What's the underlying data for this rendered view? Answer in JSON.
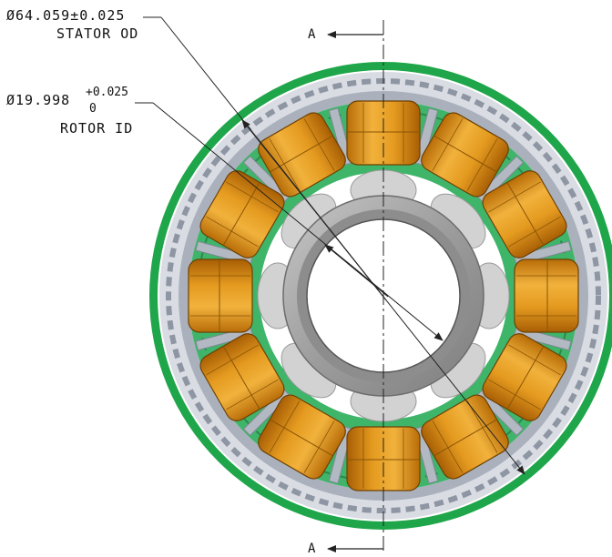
{
  "dimensions": {
    "stator_od": {
      "symbol": "Ø",
      "value": "64.059±0.025",
      "label": "STATOR OD"
    },
    "rotor_id": {
      "symbol": "Ø",
      "value": "19.998",
      "tol_upper": "+0.025",
      "tol_lower": "0",
      "label": "ROTOR ID"
    }
  },
  "section": {
    "top_label": "A",
    "bottom_label": "A"
  },
  "colors": {
    "housing_green": "#1fa64a",
    "insulator_green": "#3fb56a",
    "stator_gray": "#a9b0bb",
    "winding_orange": "#e39a1e",
    "rotor_gray": "#9a9a9a",
    "magnet_lightgray": "#cfcfcf"
  },
  "components": {
    "stator_teeth_count": 12,
    "rotor_poles_count": 8
  }
}
